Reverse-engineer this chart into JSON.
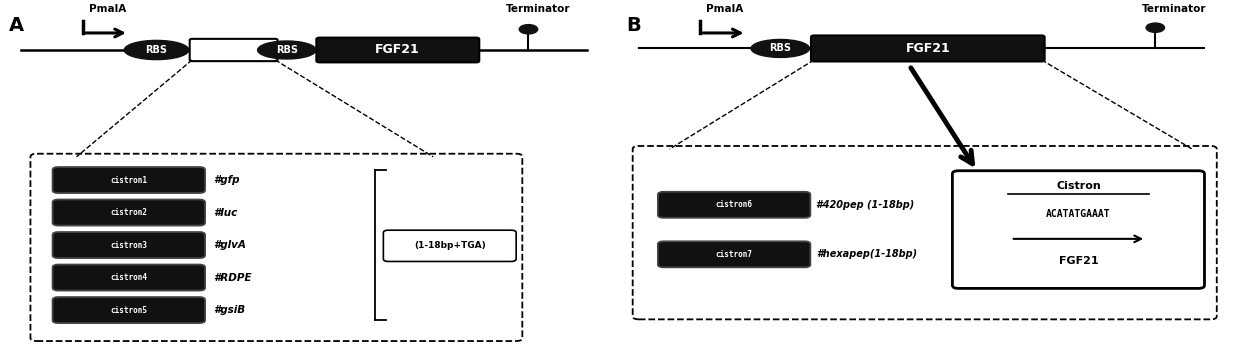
{
  "panel_A": {
    "label": "A",
    "promoter_label": "PmalA",
    "terminator_label": "Terminator",
    "rbs1_label": "RBS",
    "rbs2_label": "RBS",
    "fgf21_label": "FGF21",
    "cistrons": [
      "cistron1",
      "cistron2",
      "cistron3",
      "cistron4",
      "cistron5"
    ],
    "cistron_genes": [
      "#gfp",
      "#luc",
      "#glvA",
      "#RDPE",
      "#gsiB"
    ],
    "bracket_label": "(1-18bp+TGA)"
  },
  "panel_B": {
    "label": "B",
    "promoter_label": "PmalA",
    "terminator_label": "Terminator",
    "rbs_label": "RBS",
    "fgf21_label": "FGF21",
    "cistrons": [
      "cistron6",
      "cistron7"
    ],
    "cistron_genes": [
      "#420pep (1-18bp)",
      "#hexapep(1-18bp)"
    ],
    "box_title": "Cistron",
    "box_seq": "ACATATGAAAT",
    "box_gene": "FGF21"
  }
}
